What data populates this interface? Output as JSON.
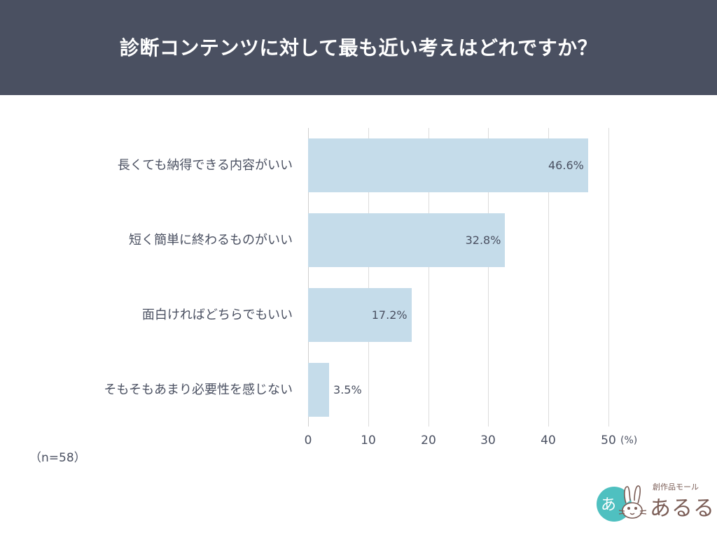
{
  "header": {
    "title": "診断コンテンツに対して最も近い考えはどれですか？"
  },
  "chart_data": {
    "type": "bar",
    "orientation": "horizontal",
    "title": "診断コンテンツに対して最も近い考えはどれですか？",
    "categories": [
      "長くても納得できる内容がいい",
      "短く簡単に終わるものがいい",
      "面白ければどちらでもいい",
      "そもそもあまり必要性を感じない"
    ],
    "values": [
      46.6,
      32.8,
      17.2,
      3.5
    ],
    "value_labels": [
      "46.6%",
      "32.8%",
      "17.2%",
      "3.5%"
    ],
    "xlabel": "(%)",
    "ylabel": "",
    "xlim": [
      0,
      50
    ],
    "x_ticks": [
      "0",
      "10",
      "20",
      "30",
      "40",
      "50"
    ],
    "grid": true,
    "bar_color": "#c5dcea",
    "note": "（n=58）"
  },
  "axis": {
    "ticks": [
      "0",
      "10",
      "20",
      "30",
      "40",
      "50"
    ],
    "unit": "(%)"
  },
  "footer": {
    "sample_size": "（n=58）"
  },
  "logo": {
    "icon_text": "あ",
    "subtitle": "創作品モール",
    "name": "あるる"
  },
  "colors": {
    "header_bg": "#4a5061",
    "bar": "#c5dcea",
    "text": "#4a5061",
    "logo_teal": "#4fc0c0",
    "logo_brown": "#7a5c55"
  }
}
